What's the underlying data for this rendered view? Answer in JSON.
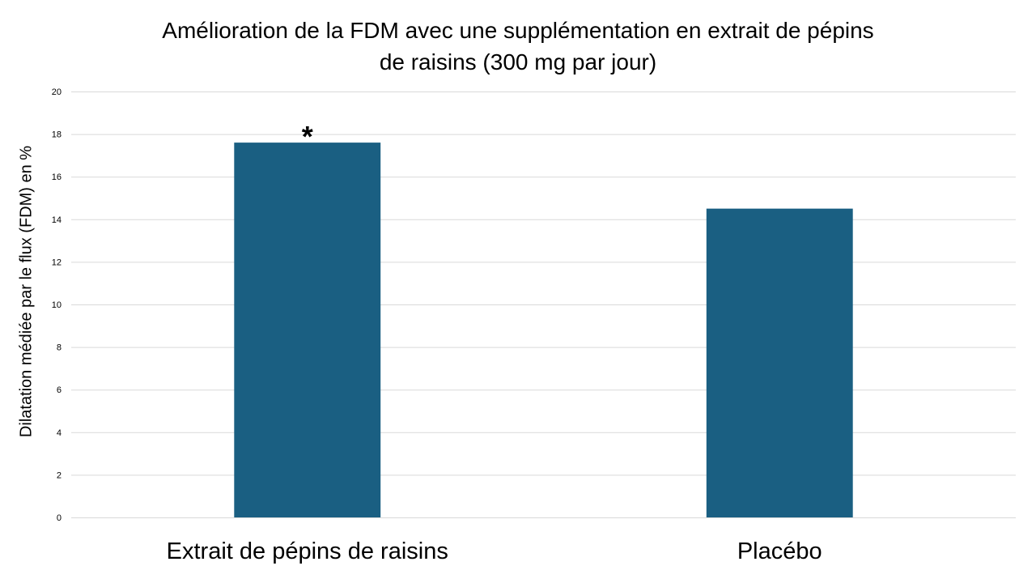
{
  "chart_data": {
    "type": "bar",
    "title_lines": [
      "Amélioration de la FDM avec une supplémentation en extrait de pépins",
      "de raisins (300 mg par jour)"
    ],
    "xlabel": "",
    "ylabel": "Dilatation médiée par le flux (FDM) en %",
    "categories": [
      "Extrait de pépins de raisins",
      "Placébo"
    ],
    "values": [
      17.6,
      14.5
    ],
    "ylim": [
      0,
      20
    ],
    "yticks": [
      0,
      2,
      4,
      6,
      8,
      10,
      12,
      14,
      16,
      18,
      20
    ],
    "grid": true,
    "legend": "none",
    "annotations": [
      {
        "category": "Extrait de pépins de raisins",
        "text": "*"
      }
    ],
    "bar_color": "#1a5f82",
    "grid_color": "#d9d9d9"
  }
}
